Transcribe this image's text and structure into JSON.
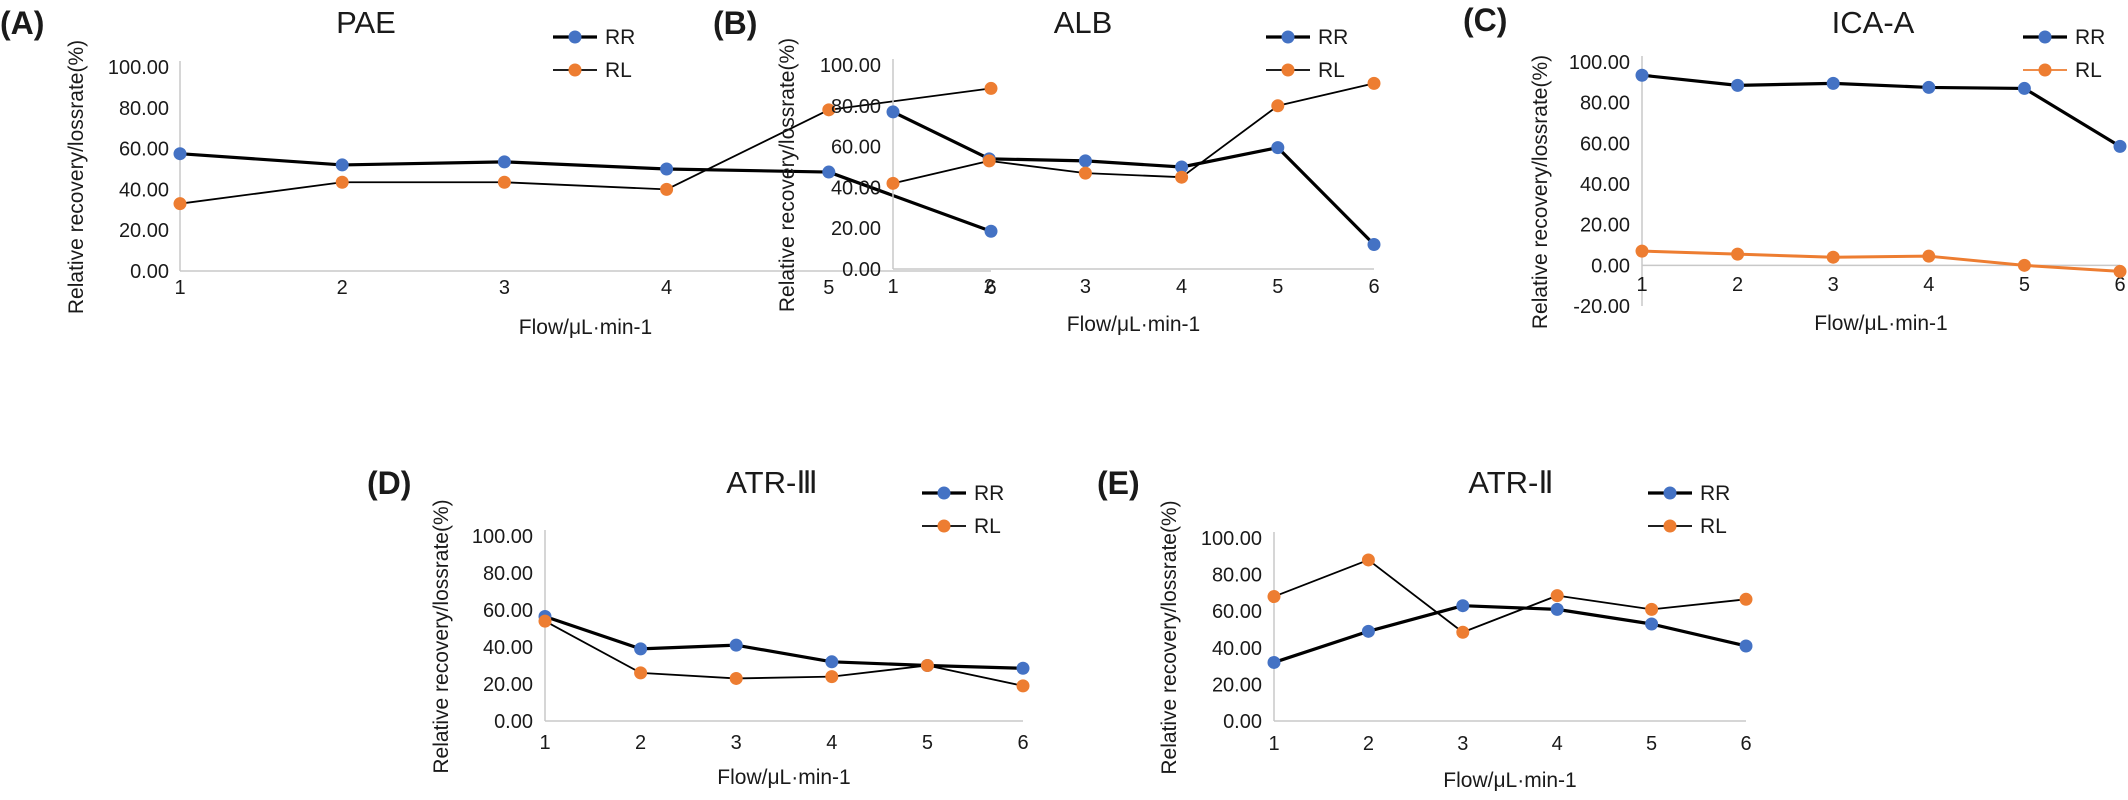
{
  "chart_data": [
    {
      "type": "line",
      "panel": "(A)",
      "title": "PAE",
      "xlabel": "Flow/μL·min-1",
      "ylabel": "Relative recovery/lossrate(%)",
      "x": [
        "1",
        "2",
        "3",
        "4",
        "5",
        "6"
      ],
      "ylim": [
        0,
        100
      ],
      "yticks": [
        "0.00",
        "20.00",
        "40.00",
        "60.00",
        "80.00",
        "100.00"
      ],
      "grid": false,
      "legend": "top-right",
      "series": [
        {
          "name": "RR",
          "color": "#4472c4",
          "values": [
            57.5,
            52,
            53.5,
            50,
            48.5,
            19.5
          ]
        },
        {
          "name": "RL",
          "color": "#ed7d31",
          "values": [
            33,
            43.5,
            43.5,
            40,
            79,
            89.5
          ]
        }
      ]
    },
    {
      "type": "line",
      "panel": "(B)",
      "title": "ALB",
      "xlabel": "Flow/μL·min-1",
      "ylabel": "Relative recovery/lossrate(%)",
      "x": [
        "1",
        "2",
        "3",
        "4",
        "5",
        "6"
      ],
      "ylim": [
        0,
        100
      ],
      "yticks": [
        "0.00",
        "20.00",
        "40.00",
        "60.00",
        "80.00",
        "100.00"
      ],
      "grid": false,
      "legend": "top-right",
      "series": [
        {
          "name": "RR",
          "color": "#4472c4",
          "values": [
            77,
            54,
            53,
            50,
            59.5,
            12
          ]
        },
        {
          "name": "RL",
          "color": "#ed7d31",
          "values": [
            42,
            53,
            47,
            45,
            80,
            91
          ]
        }
      ]
    },
    {
      "type": "line",
      "panel": "(C)",
      "title": "ICA-A",
      "xlabel": "Flow/μL·min-1",
      "ylabel": "Relative recovery/lossrate(%)",
      "x": [
        "1",
        "2",
        "3",
        "4",
        "5",
        "6"
      ],
      "ylim": [
        -20,
        100
      ],
      "yticks": [
        "-20.00",
        "0.00",
        "20.00",
        "40.00",
        "60.00",
        "80.00",
        "100.00"
      ],
      "grid": false,
      "legend": "top-right",
      "series": [
        {
          "name": "RR",
          "color": "#4472c4",
          "values": [
            93.5,
            88.5,
            89.5,
            87.5,
            87,
            58.5
          ]
        },
        {
          "name": "RL",
          "color": "#ed7d31",
          "values": [
            7,
            5.5,
            4,
            4.5,
            0,
            -3
          ]
        }
      ]
    },
    {
      "type": "line",
      "panel": "(D)",
      "title": "ATR-Ⅲ",
      "xlabel": "Flow/μL·min-1",
      "ylabel": "Relative recovery/lossrate(%)",
      "x": [
        "1",
        "2",
        "3",
        "4",
        "5",
        "6"
      ],
      "ylim": [
        0,
        100
      ],
      "yticks": [
        "0.00",
        "20.00",
        "40.00",
        "60.00",
        "80.00",
        "100.00"
      ],
      "grid": false,
      "legend": "top-right",
      "series": [
        {
          "name": "RR",
          "color": "#4472c4",
          "values": [
            56.5,
            39,
            41,
            32,
            30,
            28.5
          ]
        },
        {
          "name": "RL",
          "color": "#ed7d31",
          "values": [
            54,
            26,
            23,
            24,
            30,
            19
          ]
        }
      ]
    },
    {
      "type": "line",
      "panel": "(E)",
      "title": "ATR-Ⅱ",
      "xlabel": "Flow/μL·min-1",
      "ylabel": "Relative recovery/lossrate(%)",
      "x": [
        "1",
        "2",
        "3",
        "4",
        "5",
        "6"
      ],
      "ylim": [
        0,
        100
      ],
      "yticks": [
        "0.00",
        "20.00",
        "40.00",
        "60.00",
        "80.00",
        "100.00"
      ],
      "grid": false,
      "legend": "top-right",
      "series": [
        {
          "name": "RR",
          "color": "#4472c4",
          "values": [
            32,
            49,
            63,
            61,
            53,
            41
          ]
        },
        {
          "name": "RL",
          "color": "#ed7d31",
          "values": [
            68,
            88,
            48.5,
            68.5,
            61,
            66.5
          ]
        }
      ]
    }
  ]
}
